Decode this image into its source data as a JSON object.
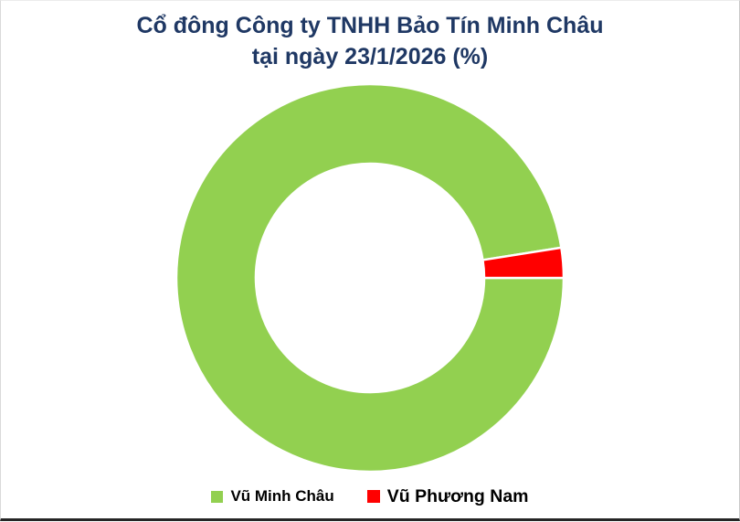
{
  "header": {
    "title_line1": "Cổ đông Công ty TNHH Bảo Tín Minh Châu",
    "title_line2": "tại ngày 23/1/2026 (%)",
    "title_color": "#1F3864"
  },
  "chart_data": {
    "type": "pie",
    "subtype": "donut",
    "title": "Cổ đông Công ty TNHH Bảo Tín Minh Châu tại ngày 23/1/2026 (%)",
    "labels": [
      "Vũ Minh Châu",
      "Vũ Phương Nam"
    ],
    "values": [
      97.5,
      2.5
    ],
    "colors": [
      "#92D050",
      "#FF0000"
    ],
    "slice_border_color": "#FFFFFF",
    "hole_ratio": 0.59,
    "data_labels_shown": false,
    "legend_position": "bottom",
    "legend_text_color": "#000000",
    "background_color": "#FFFFFF"
  }
}
